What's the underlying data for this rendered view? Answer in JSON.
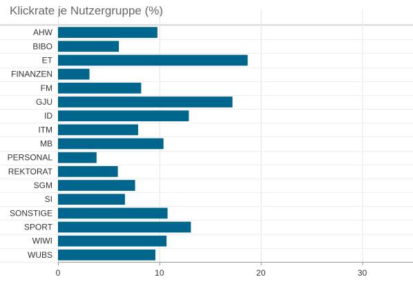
{
  "chart_data": {
    "type": "bar",
    "orientation": "horizontal",
    "title": "Klickrate je Nutzergruppe (%)",
    "xlabel": "",
    "ylabel": "",
    "categories": [
      "AHW",
      "BIBO",
      "ET",
      "FINANZEN",
      "FM",
      "GJU",
      "ID",
      "ITM",
      "MB",
      "PERSONAL",
      "REKTORAT",
      "SGM",
      "SI",
      "SONSTIGE",
      "SPORT",
      "WIWI",
      "WUBS"
    ],
    "values": [
      9.8,
      6.0,
      18.7,
      3.1,
      8.2,
      17.2,
      12.9,
      7.9,
      10.4,
      3.8,
      5.9,
      7.6,
      6.6,
      10.8,
      13.1,
      10.7,
      9.6
    ],
    "xlim": [
      0,
      35
    ],
    "xticks": [
      0,
      10,
      20,
      30
    ],
    "grid": true,
    "legend": "none",
    "bar_color": "#00668e"
  }
}
